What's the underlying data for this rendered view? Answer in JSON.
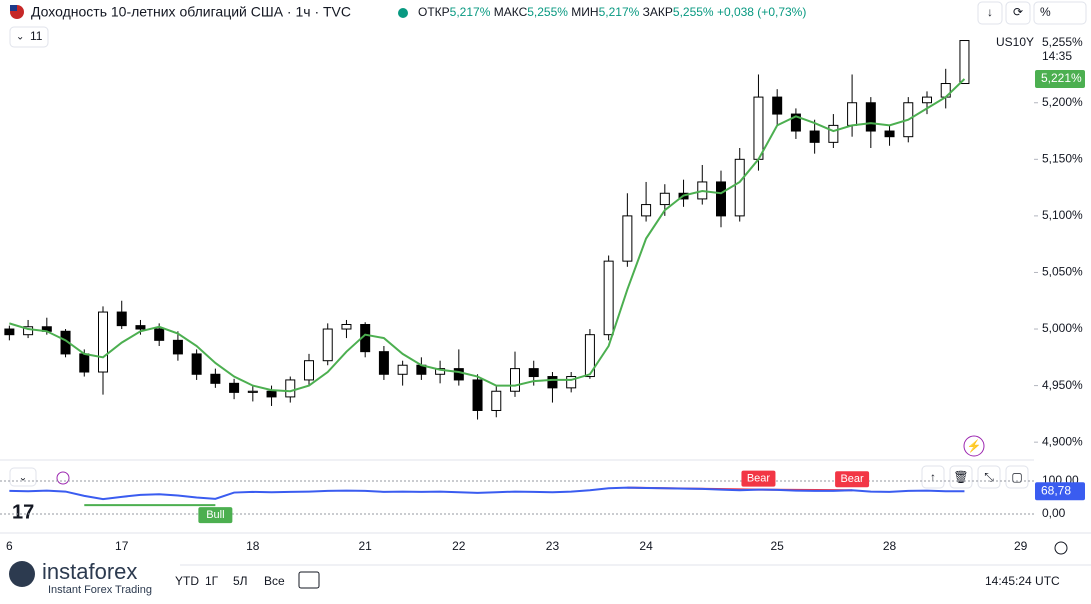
{
  "header": {
    "title": "Доходность 10-летних облигаций США · 1ч · TVC",
    "stats": [
      {
        "label": "ОТКР",
        "value": "5,217%"
      },
      {
        "label": "МАКС",
        "value": "5,255%"
      },
      {
        "label": "МИН",
        "value": "5,217%"
      },
      {
        "label": "ЗАКР",
        "value": "5,255%"
      }
    ],
    "change": "+0,038 (+0,73%)",
    "indicator_count": "11",
    "percent_button": "%"
  },
  "chart_data": [
    {
      "type": "candlestick",
      "symbol": "US10Y",
      "time_left": "14:35",
      "categories": [
        "6",
        null,
        null,
        null,
        null,
        null,
        "17",
        null,
        null,
        null,
        null,
        null,
        null,
        "18",
        null,
        null,
        null,
        null,
        null,
        "21",
        null,
        null,
        null,
        null,
        "22",
        null,
        null,
        null,
        null,
        "23",
        null,
        null,
        null,
        null,
        "24",
        null,
        null,
        null,
        null,
        null,
        null,
        "25",
        null,
        null,
        null,
        null,
        null,
        "28",
        null,
        null,
        null,
        null,
        null,
        null,
        "29"
      ],
      "open": [
        5.0,
        4.995,
        5.002,
        4.998,
        4.978,
        4.962,
        5.015,
        5.003,
        5.0,
        4.99,
        4.978,
        4.96,
        4.952,
        4.944,
        4.945,
        4.94,
        4.955,
        4.972,
        5.0,
        5.004,
        4.98,
        4.96,
        4.968,
        4.96,
        4.965,
        4.955,
        4.928,
        4.945,
        4.965,
        4.958,
        4.948,
        4.958,
        4.995,
        5.06,
        5.1,
        5.11,
        5.12,
        5.115,
        5.13,
        5.1,
        5.15,
        5.205,
        5.19,
        5.175,
        5.165,
        5.18,
        5.2,
        5.175,
        5.17,
        5.2,
        5.205,
        5.217,
        null,
        null,
        null
      ],
      "high": [
        5.003,
        5.008,
        5.01,
        5.0,
        4.982,
        5.02,
        5.025,
        5.008,
        5.005,
        4.998,
        4.982,
        4.965,
        4.956,
        4.95,
        4.95,
        4.958,
        4.978,
        5.005,
        5.008,
        5.006,
        4.985,
        4.972,
        4.975,
        4.972,
        4.982,
        4.96,
        4.95,
        4.98,
        4.972,
        4.962,
        4.962,
        5.0,
        5.065,
        5.12,
        5.13,
        5.128,
        5.132,
        5.145,
        5.14,
        5.16,
        5.225,
        5.212,
        5.195,
        5.185,
        5.19,
        5.225,
        5.205,
        5.18,
        5.205,
        5.21,
        5.23,
        5.255,
        null,
        null,
        null
      ],
      "low": [
        4.99,
        4.992,
        4.995,
        4.975,
        4.958,
        4.942,
        5.0,
        4.995,
        4.985,
        4.972,
        4.955,
        4.948,
        4.938,
        4.936,
        4.932,
        4.935,
        4.95,
        4.968,
        4.992,
        4.975,
        4.955,
        4.95,
        4.955,
        4.952,
        4.95,
        4.92,
        4.922,
        4.94,
        4.95,
        4.935,
        4.944,
        4.956,
        4.99,
        5.055,
        5.095,
        5.1,
        5.108,
        5.11,
        5.09,
        5.095,
        5.14,
        5.18,
        5.168,
        5.155,
        5.16,
        5.17,
        5.16,
        5.162,
        5.165,
        5.19,
        5.195,
        5.217,
        null,
        null,
        null
      ],
      "close": [
        4.995,
        5.002,
        4.998,
        4.978,
        4.962,
        5.015,
        5.003,
        5.0,
        4.99,
        4.978,
        4.96,
        4.952,
        4.944,
        4.945,
        4.94,
        4.955,
        4.972,
        5.0,
        5.004,
        4.98,
        4.96,
        4.968,
        4.96,
        4.965,
        4.955,
        4.928,
        4.945,
        4.965,
        4.958,
        4.948,
        4.958,
        4.995,
        5.06,
        5.1,
        5.11,
        5.12,
        5.115,
        5.13,
        5.1,
        5.15,
        5.205,
        5.19,
        5.175,
        5.165,
        5.18,
        5.2,
        5.175,
        5.17,
        5.2,
        5.205,
        5.217,
        5.255,
        null,
        null,
        null
      ],
      "up_color": "#ffffff",
      "down_color": "#000000",
      "ma": {
        "color": "#4caf50",
        "values": [
          5.005,
          5.0,
          4.998,
          4.99,
          4.978,
          4.975,
          4.988,
          4.998,
          5.002,
          4.996,
          4.985,
          4.97,
          4.958,
          4.95,
          4.946,
          4.945,
          4.95,
          4.962,
          4.98,
          4.995,
          4.992,
          4.978,
          4.968,
          4.964,
          4.962,
          4.958,
          4.95,
          4.95,
          4.954,
          4.955,
          4.955,
          4.96,
          4.985,
          5.035,
          5.08,
          5.105,
          5.118,
          5.122,
          5.12,
          5.13,
          5.15,
          5.18,
          5.188,
          5.182,
          5.175,
          5.18,
          5.182,
          5.18,
          5.185,
          5.195,
          5.205,
          5.221,
          null,
          null,
          null
        ],
        "last_label": {
          "value": 5.221,
          "label": "5,221%"
        }
      },
      "last_price": {
        "value": 5.255,
        "label": "5,255%"
      },
      "ylim": [
        4.886,
        5.259
      ],
      "yticks": [
        {
          "value": 5.2,
          "label": "5,200%"
        },
        {
          "value": 5.15,
          "label": "5,150%"
        },
        {
          "value": 5.1,
          "label": "5,100%"
        },
        {
          "value": 5.05,
          "label": "5,050%"
        },
        {
          "value": 5.0,
          "label": "5,000%"
        },
        {
          "value": 4.95,
          "label": "4,950%"
        },
        {
          "value": 4.9,
          "label": "4,900%"
        }
      ]
    },
    {
      "type": "line",
      "color": "#3a5cf0",
      "values": [
        70,
        69,
        71,
        68,
        55,
        45,
        52,
        58,
        60,
        56,
        50,
        46,
        65,
        67,
        66,
        67,
        68,
        70,
        71,
        70,
        67,
        68,
        67,
        68,
        66,
        64,
        66,
        68,
        67,
        66,
        68,
        72,
        78,
        80,
        79,
        78,
        77,
        76,
        74,
        72,
        74,
        73,
        71,
        70,
        70,
        72,
        68,
        67,
        70,
        71,
        69,
        68.78,
        null,
        null,
        null
      ],
      "last_label": {
        "value": 68.78,
        "label": "68,78"
      },
      "ylim": [
        -63.6,
        157.6
      ],
      "yticks": [
        {
          "value": 100,
          "label": "100,00"
        },
        {
          "value": 0,
          "label": "0,00"
        }
      ],
      "divergences": [
        {
          "label": "Bull",
          "color": "#4caf50",
          "from": 4,
          "to": 11,
          "values": [
            27,
            27
          ]
        },
        {
          "label": "Bear",
          "color": "#f23645",
          "from": 33,
          "to": 40,
          "values": [
            80,
            74
          ]
        },
        {
          "label": "Bear",
          "color": "#f23645",
          "from": 40,
          "to": 45,
          "values": [
            74,
            72
          ]
        }
      ]
    }
  ],
  "toolbar": {
    "ranges": [
      "YTD",
      "1Г",
      "5Л",
      "Все"
    ],
    "clock": "14:45:24 UTC"
  },
  "watermark": {
    "brand": "instaforex",
    "tagline": "Instant Forex Trading"
  }
}
